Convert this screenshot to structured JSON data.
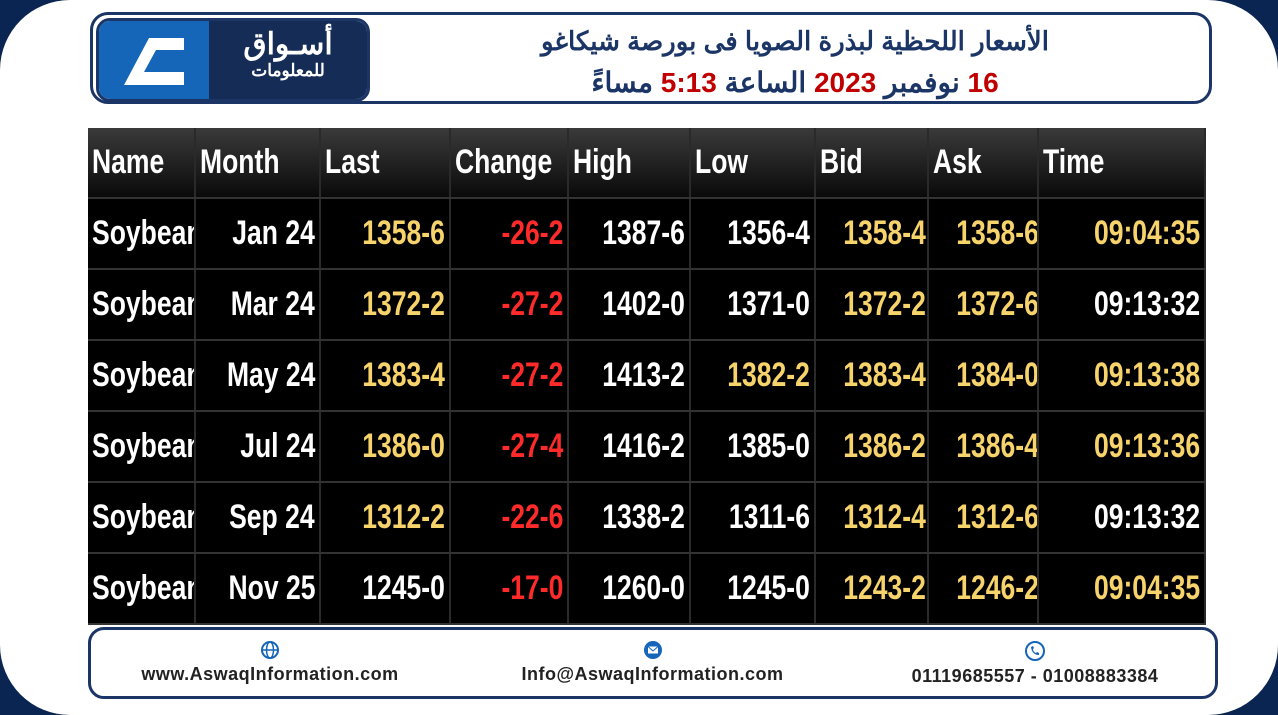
{
  "header": {
    "logo": {
      "title": "أسـواق",
      "subtitle": "للمعلومات"
    },
    "title": "الأسعار اللحظية لبذرة الصويا فى بورصة شيكاغو",
    "subtitle": [
      "16",
      "نوفمبر",
      "2023",
      "الساعة",
      "5:13",
      "مساءً"
    ]
  },
  "table": {
    "columns": [
      "Name",
      "Month",
      "Last",
      "Change",
      "High",
      "Low",
      "Bid",
      "Ask",
      "Time"
    ],
    "rows": [
      [
        "Soybean",
        "Jan 24",
        "1358-6",
        "-26-2",
        "1387-6",
        "1356-4",
        "1358-4",
        "1358-6",
        "09:04:35"
      ],
      [
        "Soybean",
        "Mar 24",
        "1372-2",
        "-27-2",
        "1402-0",
        "1371-0",
        "1372-2",
        "1372-6",
        "09:13:32"
      ],
      [
        "Soybean",
        "May 24",
        "1383-4",
        "-27-2",
        "1413-2",
        "1382-2",
        "1383-4",
        "1384-0",
        "09:13:38"
      ],
      [
        "Soybean",
        "Jul 24",
        "1386-0",
        "-27-4",
        "1416-2",
        "1385-0",
        "1386-2",
        "1386-4",
        "09:13:36"
      ],
      [
        "Soybean",
        "Sep 24",
        "1312-2",
        "-22-6",
        "1338-2",
        "1311-6",
        "1312-4",
        "1312-6",
        "09:13:32"
      ],
      [
        "Soybean",
        "Nov 25",
        "1245-0",
        "-17-0",
        "1260-0",
        "1245-0",
        "1243-2",
        "1246-2",
        "09:04:35"
      ]
    ],
    "colors": [
      [
        "#ffffff",
        "#ffffff",
        "#f7d36b",
        "#ff2a2a",
        "#ffffff",
        "#ffffff",
        "#f7d36b",
        "#f7d36b",
        "#f7d36b"
      ],
      [
        "#ffffff",
        "#ffffff",
        "#f7d36b",
        "#ff2a2a",
        "#ffffff",
        "#ffffff",
        "#f7d36b",
        "#f7d36b",
        "#ffffff"
      ],
      [
        "#ffffff",
        "#ffffff",
        "#f7d36b",
        "#ff2a2a",
        "#ffffff",
        "#f7d36b",
        "#f7d36b",
        "#f7d36b",
        "#f7d36b"
      ],
      [
        "#ffffff",
        "#ffffff",
        "#f7d36b",
        "#ff2a2a",
        "#ffffff",
        "#ffffff",
        "#f7d36b",
        "#f7d36b",
        "#f7d36b"
      ],
      [
        "#ffffff",
        "#ffffff",
        "#f7d36b",
        "#ff2a2a",
        "#ffffff",
        "#ffffff",
        "#f7d36b",
        "#f7d36b",
        "#ffffff"
      ],
      [
        "#ffffff",
        "#ffffff",
        "#ffffff",
        "#ff2a2a",
        "#ffffff",
        "#ffffff",
        "#f7d36b",
        "#f7d36b",
        "#f7d36b"
      ]
    ]
  },
  "footer": {
    "website": "www.AswaqInformation.com",
    "email": "Info@AswaqInformation.com",
    "phone": "01119685557 - 01008883384"
  }
}
